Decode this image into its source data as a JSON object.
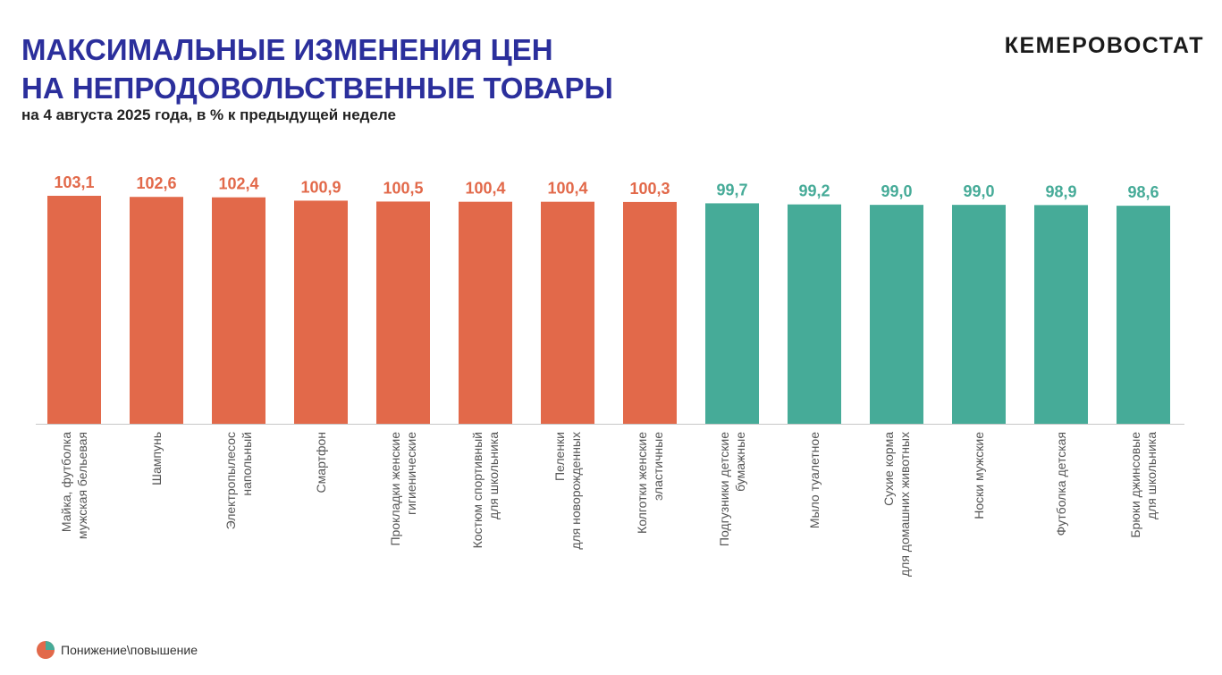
{
  "header": {
    "title_line1": "МАКСИМАЛЬНЫЕ ИЗМЕНЕНИЯ ЦЕН",
    "title_line2": "НА НЕПРОДОВОЛЬСТВЕННЫЕ ТОВАРЫ",
    "subtitle": "на 4 августа 2025 года, в % к предыдущей неделе",
    "brand": "КЕМЕРОВОСТАТ"
  },
  "legend": {
    "label": "Понижение\\повышение",
    "colors": [
      "#e2694a",
      "#46ab98"
    ]
  },
  "chart_data": {
    "type": "bar",
    "categories": [
      [
        "Майка, футболка",
        "мужская бельевая"
      ],
      [
        "Шампунь"
      ],
      [
        "Электропылесос",
        "напольный"
      ],
      [
        "Смартфон"
      ],
      [
        "Прокладки женские",
        "гигиенические"
      ],
      [
        "Костюм спортивный",
        "для школьника"
      ],
      [
        "Пеленки",
        "для новорожденных"
      ],
      [
        "Колготки женские",
        "эластичные"
      ],
      [
        "Подгузники детские",
        "бумажные"
      ],
      [
        "Мыло туалетное"
      ],
      [
        "Сухие корма",
        "для домашних животных"
      ],
      [
        "Носки мужские"
      ],
      [
        "Футболка детская"
      ],
      [
        "Брюки джинсовые",
        "для школьника"
      ]
    ],
    "values": [
      103.1,
      102.6,
      102.4,
      100.9,
      100.5,
      100.4,
      100.4,
      100.3,
      99.7,
      99.2,
      99.0,
      99.0,
      98.9,
      98.6
    ],
    "value_labels": [
      "103,1",
      "102,6",
      "102,4",
      "100,9",
      "100,5",
      "100,4",
      "100,4",
      "100,3",
      "99,7",
      "99,2",
      "99,0",
      "99,0",
      "98,9",
      "98,6"
    ],
    "increase_color": "#e2694a",
    "decrease_color": "#46ab98",
    "threshold": 100,
    "ylim": [
      0,
      103.1
    ],
    "grid": false
  }
}
